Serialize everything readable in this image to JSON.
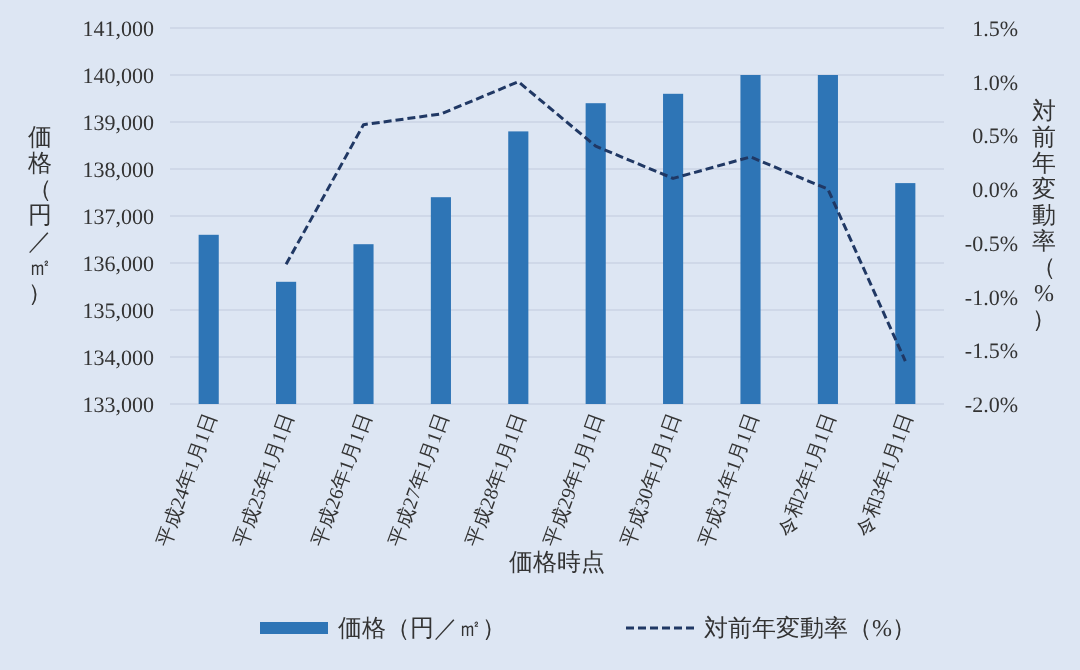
{
  "chart_data": {
    "type": "bar",
    "xlabel": "価格時点",
    "ylabel": "価格（円／㎡）",
    "y2label": "対前年変動率（%）",
    "categories": [
      "平成24年1月1日",
      "平成25年1月1日",
      "平成26年1月1日",
      "平成27年1月1日",
      "平成28年1月1日",
      "平成29年1月1日",
      "平成30年1月1日",
      "平成31年1月1日",
      "令和2年1月1日",
      "令和3年1月1日"
    ],
    "series": [
      {
        "name": "価格（円／㎡）",
        "color": "#2e75b6",
        "values": [
          136600,
          135600,
          136400,
          137400,
          138800,
          139400,
          139600,
          140000,
          140000,
          137700
        ]
      },
      {
        "name": "対前年変動率（%）",
        "type": "line",
        "axis": "y2",
        "color": "#203864",
        "line_style": "dashed",
        "values": [
          null,
          -0.7,
          0.6,
          0.7,
          1.0,
          0.4,
          0.1,
          0.3,
          0.0,
          -1.6
        ]
      }
    ],
    "ylim": [
      133000,
      141000
    ],
    "yticks": [
      {
        "value": 133000,
        "label": "133,000"
      },
      {
        "value": 134000,
        "label": "134,000"
      },
      {
        "value": 135000,
        "label": "135,000"
      },
      {
        "value": 136000,
        "label": "136,000"
      },
      {
        "value": 137000,
        "label": "137,000"
      },
      {
        "value": 138000,
        "label": "138,000"
      },
      {
        "value": 139000,
        "label": "139,000"
      },
      {
        "value": 140000,
        "label": "140,000"
      },
      {
        "value": 141000,
        "label": "141,000"
      }
    ],
    "y2lim": [
      -2.0,
      1.5
    ],
    "y2ticks": [
      {
        "value": -2.0,
        "label": "-2.0%"
      },
      {
        "value": -1.5,
        "label": "-1.5%"
      },
      {
        "value": -1.0,
        "label": "-1.0%"
      },
      {
        "value": -0.5,
        "label": "-0.5%"
      },
      {
        "value": 0.0,
        "label": "0.0%"
      },
      {
        "value": 0.5,
        "label": "0.5%"
      },
      {
        "value": 1.0,
        "label": "1.0%"
      },
      {
        "value": 1.5,
        "label": "1.5%"
      }
    ],
    "grid": "y",
    "legend": "bottom"
  }
}
